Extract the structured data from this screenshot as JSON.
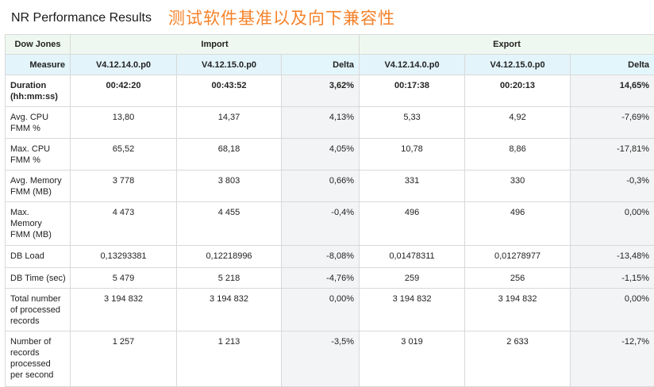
{
  "title": "NR Performance Results",
  "subtitle": "测试软件基准以及向下兼容性",
  "table": {
    "corner": "Dow Jones",
    "groups": [
      "Import",
      "Export"
    ],
    "header": {
      "measure": "Measure",
      "cols": [
        "V4.12.14.0.p0",
        "V4.12.15.0.p0",
        "Delta",
        "V4.12.14.0.p0",
        "V4.12.15.0.p0",
        "Delta"
      ]
    },
    "rows": [
      {
        "label": [
          "Duration",
          "(hh:mm:ss)"
        ],
        "values": [
          "00:42:20",
          "00:43:52",
          "3,62%",
          "00:17:38",
          "00:20:13",
          "14,65%"
        ]
      },
      {
        "label": [
          "Avg. CPU",
          "FMM %"
        ],
        "values": [
          "13,80",
          "14,37",
          "4,13%",
          "5,33",
          "4,92",
          "-7,69%"
        ]
      },
      {
        "label": [
          "Max. CPU",
          "FMM %"
        ],
        "values": [
          "65,52",
          "68,18",
          "4,05%",
          "10,78",
          "8,86",
          "-17,81%"
        ]
      },
      {
        "label": [
          "Avg. Memory",
          "FMM (MB)"
        ],
        "values": [
          "3 778",
          "3 803",
          "0,66%",
          "331",
          "330",
          "-0,3%"
        ]
      },
      {
        "label": [
          "Max.",
          "Memory",
          "FMM (MB)"
        ],
        "values": [
          "4 473",
          "4 455",
          "-0,4%",
          "496",
          "496",
          "0,00%"
        ]
      },
      {
        "label": [
          "DB Load"
        ],
        "values": [
          "0,13293381",
          "0,12218996",
          "-8,08%",
          "0,01478311",
          "0,01278977",
          "-13,48%"
        ]
      },
      {
        "label": [
          "DB Time (sec)"
        ],
        "values": [
          "5 479",
          "5 218",
          "-4,76%",
          "259",
          "256",
          "-1,15%"
        ]
      },
      {
        "label": [
          "Total number",
          "of processed",
          "records"
        ],
        "values": [
          "3 194 832",
          "3 194 832",
          "0,00%",
          "3 194 832",
          "3 194 832",
          "0,00%"
        ]
      },
      {
        "label": [
          "Number of",
          "records",
          "processed",
          "per second"
        ],
        "values": [
          "1 257",
          "1 213",
          "-3,5%",
          "3 019",
          "2 633",
          "-12,7%"
        ]
      }
    ]
  }
}
